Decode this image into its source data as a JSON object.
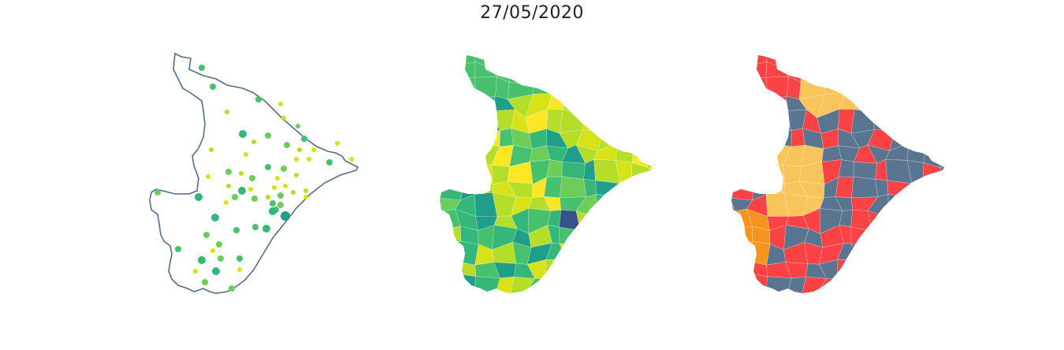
{
  "title": "27/05/2020",
  "colors": {
    "outline": "#536d88",
    "viridis": [
      "#35528b",
      "#1f9e89",
      "#35b779",
      "#47c16e",
      "#6ccd5a",
      "#b5de2b",
      "#d7e219",
      "#fde725"
    ],
    "classes": {
      "slate": "#5a7590",
      "red": "#fb4245",
      "yellow": "#f9c55a",
      "orange": "#f7941e"
    }
  },
  "panels": [
    {
      "name": "proportional-symbol-map",
      "description_type": "points"
    },
    {
      "name": "choropleth-map",
      "description_type": "viridis"
    },
    {
      "name": "class-map",
      "description_type": "categorical"
    }
  ]
}
